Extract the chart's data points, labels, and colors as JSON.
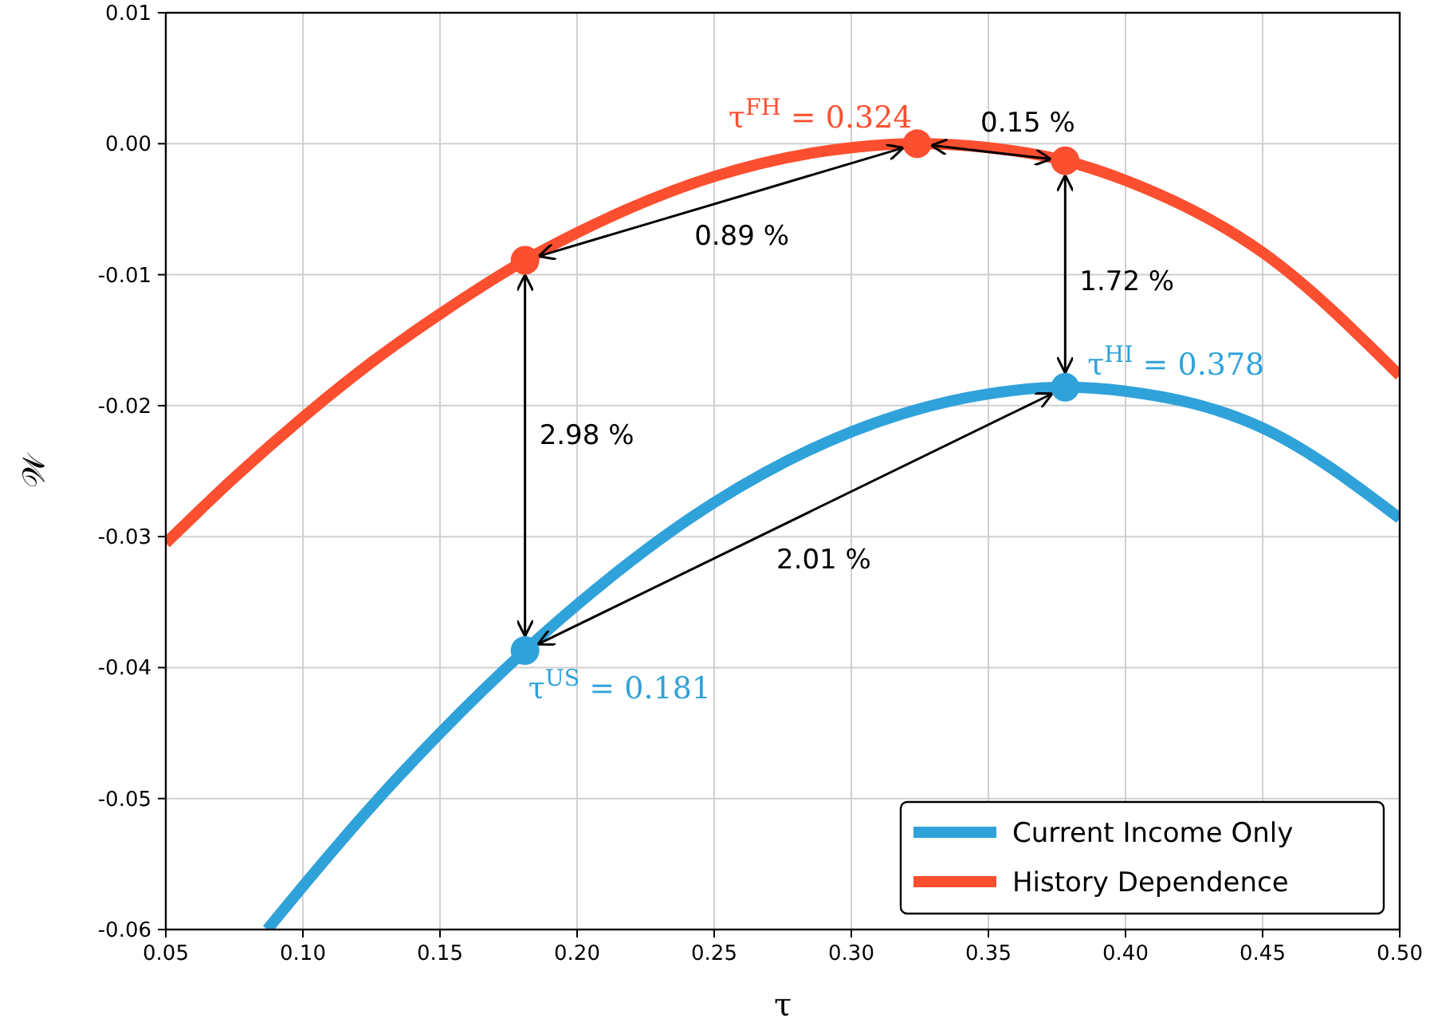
{
  "chart_data": {
    "type": "line",
    "xlabel": "τ",
    "ylabel": "𝒲",
    "xlim": [
      0.05,
      0.5
    ],
    "ylim": [
      -0.06,
      0.01
    ],
    "xticks": [
      0.05,
      {
        "value": 0.1,
        "label": "0.10"
      },
      0.15,
      {
        "value": 0.2,
        "label": "0.20"
      },
      0.25,
      {
        "value": 0.3,
        "label": "0.30"
      },
      0.35,
      {
        "value": 0.4,
        "label": "0.40"
      },
      0.45,
      {
        "value": 0.5,
        "label": "0.50"
      }
    ],
    "yticks": [
      {
        "value": -0.06,
        "label": "-0.06"
      },
      {
        "value": -0.05,
        "label": "-0.05"
      },
      {
        "value": -0.04,
        "label": "-0.04"
      },
      {
        "value": -0.03,
        "label": "-0.03"
      },
      {
        "value": -0.02,
        "label": "-0.02"
      },
      {
        "value": -0.01,
        "label": "-0.01"
      },
      {
        "value": 0,
        "label": "0.00"
      },
      {
        "value": 0.01,
        "label": "0.01"
      }
    ],
    "grid": true,
    "legend": "bottom right",
    "line_style": "solid",
    "series": [
      {
        "name": "Current Income Only",
        "color": "#30a2da",
        "x": [
          0.087,
          0.1,
          0.125,
          0.15,
          0.181,
          0.2,
          0.25,
          0.3,
          0.35,
          0.378,
          0.4,
          0.45,
          0.5
        ],
        "values": [
          -0.06,
          -0.0567,
          -0.0506,
          -0.045,
          -0.0387,
          -0.0352,
          -0.0274,
          -0.022,
          -0.0191,
          -0.0186,
          -0.0189,
          -0.0217,
          -0.0286
        ]
      },
      {
        "name": "History Dependence",
        "color": "#fc4f30",
        "x": [
          0.05,
          0.075,
          0.1,
          0.125,
          0.15,
          0.181,
          0.2,
          0.25,
          0.3,
          0.324,
          0.35,
          0.378,
          0.4,
          0.45,
          0.5
        ],
        "values": [
          -0.0305,
          -0.0255,
          -0.0209,
          -0.0167,
          -0.013,
          -0.0089,
          -0.0068,
          -0.0025,
          -0.0003,
          0,
          -0.0003,
          -0.0013,
          -0.0028,
          -0.0083,
          -0.0177
        ]
      },
      {
        "type": "scatter",
        "marker": "circle",
        "color": "#30a2da",
        "x": [
          0.181,
          0.378
        ],
        "values": [
          -0.0387,
          -0.0186
        ]
      },
      {
        "type": "scatter",
        "marker": "circle",
        "color": "#fc4f30",
        "x": [
          0.181,
          0.324,
          0.378
        ],
        "values": [
          -0.0089,
          0,
          -0.0013
        ]
      }
    ],
    "annotations": [
      {
        "text": "τ$^{FH}$ = 0.324",
        "x": 0.324,
        "y": 0
      },
      {
        "text": "τ$^{HI}$ = 0.378",
        "x": 0.378,
        "y": -0.0186
      },
      {
        "text": "τ$^{US}$ = 0.181",
        "x": 0.181,
        "y": -0.0387
      },
      "0.89 %",
      "0.15 %",
      "1.72 %",
      "2.98 %",
      "2.01 %"
    ]
  }
}
